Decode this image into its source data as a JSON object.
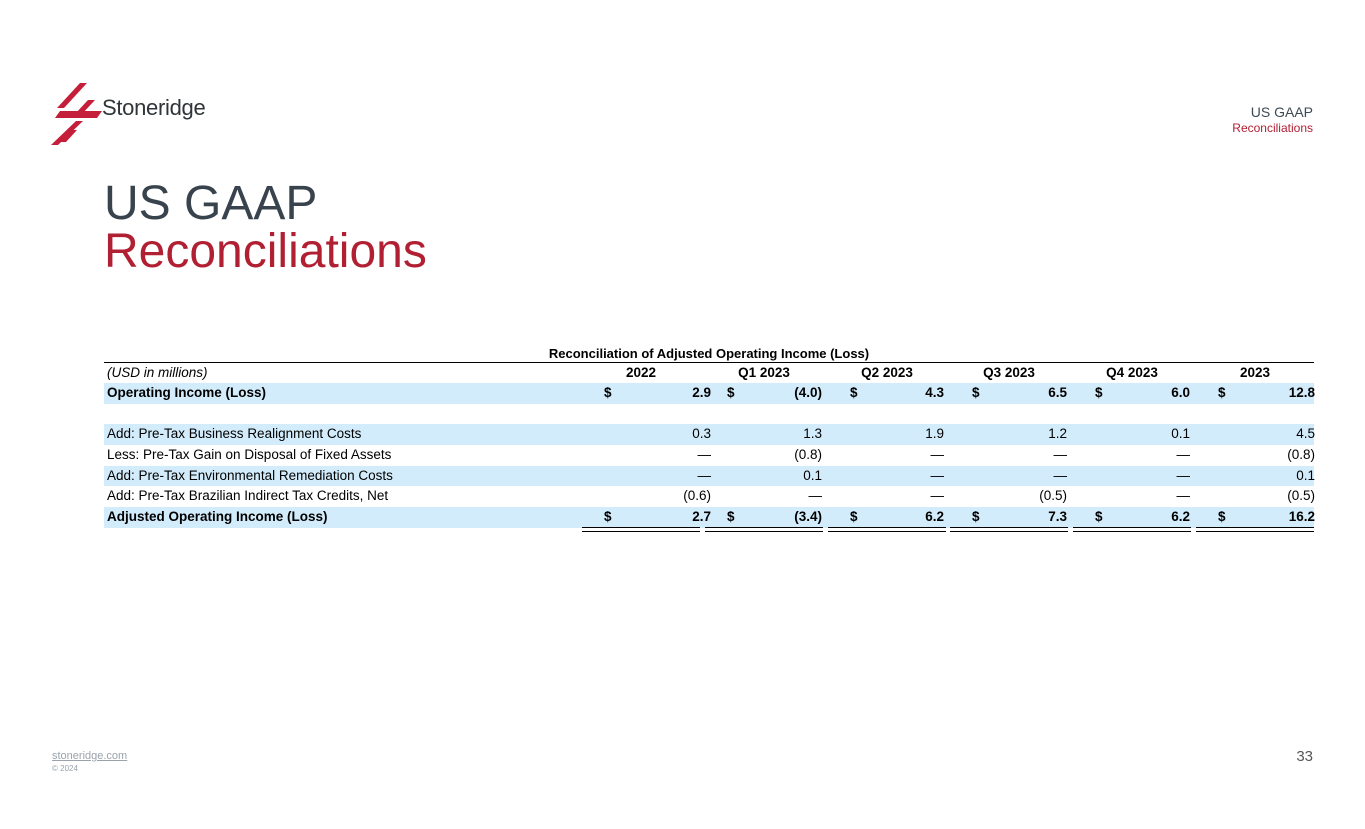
{
  "brand": {
    "name": "Stoneridge",
    "accent": "#b11f33",
    "highlight": "#d3ecfb"
  },
  "header": {
    "line1": "US GAAP",
    "line2": "Reconciliations"
  },
  "title": {
    "line1": "US GAAP",
    "line2": "Reconciliations"
  },
  "table": {
    "caption": "Reconciliation of Adjusted Operating Income (Loss)",
    "unit_label": "(USD in millions)",
    "columns": [
      "2022",
      "Q1 2023",
      "Q2 2023",
      "Q3 2023",
      "Q4 2023",
      "2023"
    ],
    "rows": [
      {
        "label": "Operating Income (Loss)",
        "values": [
          "2.9",
          "(4.0)",
          "4.3",
          "6.5",
          "6.0",
          "12.8"
        ],
        "dollar": "$"
      },
      {
        "label": "",
        "values": [
          "",
          "",
          "",
          "",
          "",
          ""
        ]
      },
      {
        "label": "Add: Pre-Tax Business Realignment Costs",
        "values": [
          "0.3",
          "1.3",
          "1.9",
          "1.2",
          "0.1",
          "4.5"
        ]
      },
      {
        "label": "Less: Pre-Tax Gain on Disposal of Fixed Assets",
        "values": [
          "—",
          "(0.8)",
          "—",
          "—",
          "—",
          "(0.8)"
        ]
      },
      {
        "label": "Add: Pre-Tax Environmental Remediation Costs",
        "values": [
          "—",
          "0.1",
          "—",
          "—",
          "—",
          "0.1"
        ]
      },
      {
        "label": "Add: Pre-Tax Brazilian Indirect Tax Credits, Net",
        "values": [
          "(0.6)",
          "—",
          "—",
          "(0.5)",
          "—",
          "(0.5)"
        ]
      },
      {
        "label": "Adjusted Operating Income (Loss)",
        "values": [
          "2.7",
          "(3.4)",
          "6.2",
          "7.3",
          "6.2",
          "16.2"
        ],
        "dollar": "$"
      }
    ]
  },
  "footer": {
    "link": "stoneridge.com",
    "copyright": "© 2024",
    "page_number": "33"
  }
}
